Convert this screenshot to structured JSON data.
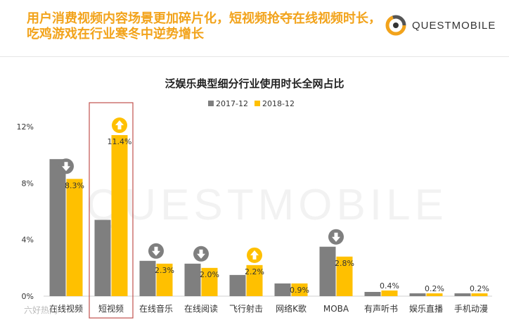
{
  "headline": {
    "line1": "用户消费视频内容场景更加碎片化，短视频抢夺在线视频时长，",
    "line2": "吃鸡游戏在行业寒冬中逆势增长"
  },
  "brand": {
    "name": "QUESTMOBILE",
    "watermark": "QUESTMOBILE",
    "source_stamp": "六好热门"
  },
  "colors": {
    "headline": "#F2A31B",
    "series_2017": "#7F7F7F",
    "series_2018": "#FFC000",
    "highlight_box": "#C0504D",
    "arrow_down": "#7F7F7F",
    "arrow_up": "#FFC000"
  },
  "chart_data": {
    "type": "bar",
    "title": "泛娱乐典型细分行业使用时长全网占比",
    "categories": [
      "在线视频",
      "短视频",
      "在线音乐",
      "在线阅读",
      "飞行射击",
      "网络K歌",
      "MOBA",
      "有声听书",
      "娱乐直播",
      "手机动漫"
    ],
    "series": [
      {
        "name": "2017-12",
        "values": [
          9.7,
          5.4,
          2.5,
          2.3,
          1.5,
          0.9,
          3.5,
          0.3,
          0.2,
          0.2
        ]
      },
      {
        "name": "2018-12",
        "values": [
          8.3,
          11.4,
          2.3,
          2.0,
          2.2,
          0.9,
          2.8,
          0.4,
          0.2,
          0.2
        ]
      }
    ],
    "data_labels": [
      "8.3%",
      "11.4%",
      "2.3%",
      "2.0%",
      "2.2%",
      "0.9%",
      "2.8%",
      "0.4%",
      "0.2%",
      "0.2%"
    ],
    "trend_arrows": [
      "down",
      "up",
      "down",
      "down",
      "up",
      "",
      "down",
      "",
      "",
      ""
    ],
    "highlighted_category": "短视频",
    "yticks": [
      "0%",
      "4%",
      "8%",
      "12%"
    ],
    "ylim": [
      0,
      12
    ],
    "legend_position": "top-center",
    "grid": false
  }
}
